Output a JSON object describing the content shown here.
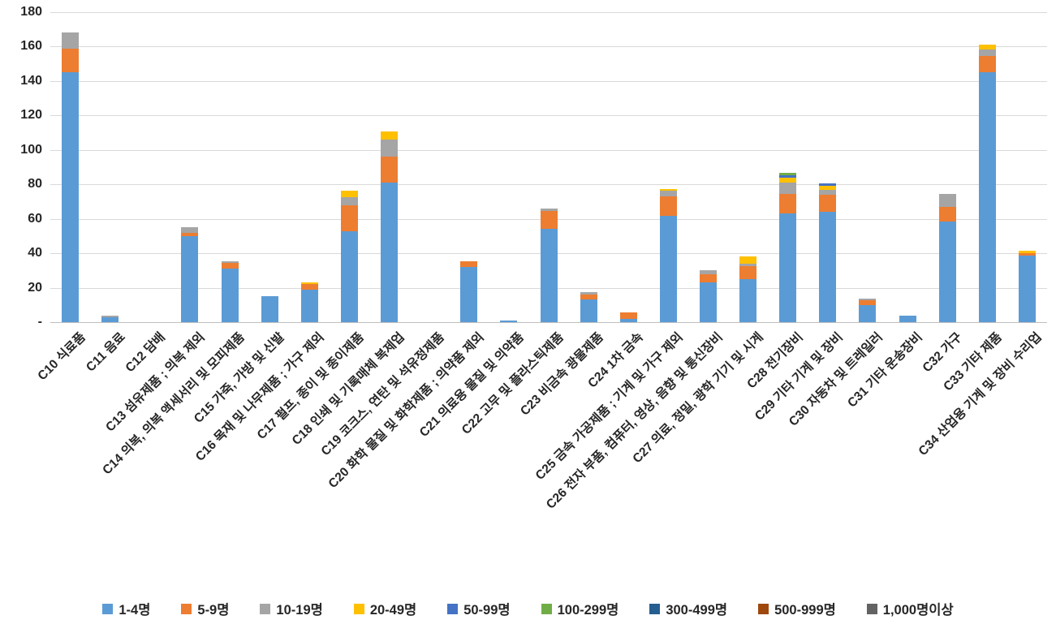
{
  "chart_data": {
    "type": "bar",
    "subtype": "stacked-vertical",
    "title": "",
    "xlabel": "",
    "ylabel": "",
    "grid": "horizontal",
    "legend_position": "bottom",
    "y_axis": {
      "min": 0,
      "max": 180,
      "step": 20,
      "tick_labels": [
        "180",
        "160",
        "140",
        "120",
        "100",
        "80",
        "60",
        "40",
        "20",
        "-"
      ]
    },
    "categories": [
      "C10 식료품",
      "C11 음료",
      "C12 담배",
      "C13 섬유제품 ; 의복 제외",
      "C14 의복, 의복 액세서리 및 모피제품",
      "C15 가죽, 가방 및 신발",
      "C16 목재 및 나무제품 ; 가구 제외",
      "C17 펄프, 종이 및 종이제품",
      "C18 인쇄 및 기록매체 복제업",
      "C19 코크스, 연탄 및 석유정제품",
      "C20 화학 물질 및 화학제품 ; 의약품 제외",
      "C21 의료용 물질 및 의약품",
      "C22 고무 및 플라스틱제품",
      "C23 비금속 광물제품",
      "C24 1차 금속",
      "C25 금속 가공제품 ; 기계 및 가구 제외",
      "C26 전자 부품, 컴퓨터, 영상, 음향 및 통신장비",
      "C27 의료, 정밀, 광학 기기 및 시계",
      "C28 전기장비",
      "C29 기타 기계 및 장비",
      "C30 자동차 및 트레일러",
      "C31 기타 운송장비",
      "C32 가구",
      "C33 기타 제품",
      "C34 산업용 기계 및 장비 수리업"
    ],
    "series": [
      {
        "name": "1-4명",
        "color": "#5B9BD5",
        "values": [
          145,
          3,
          0,
          50,
          31,
          15,
          19,
          53,
          81,
          0,
          32,
          1,
          54,
          13,
          2,
          61.5,
          23,
          25,
          63,
          64,
          10,
          4,
          58.5,
          145,
          38.5
        ]
      },
      {
        "name": "5-9명",
        "color": "#ED7D31",
        "values": [
          14,
          0,
          0,
          2,
          3.5,
          0,
          3,
          15,
          15,
          0,
          3.5,
          0,
          10.5,
          3,
          3.5,
          11.5,
          5,
          7.5,
          11.5,
          10,
          2.5,
          0,
          8.5,
          9.5,
          1.5
        ]
      },
      {
        "name": "10-19명",
        "color": "#A5A5A5",
        "values": [
          9,
          1,
          0,
          3,
          1,
          0,
          0,
          4.5,
          10,
          0,
          0,
          0,
          1.5,
          1.5,
          0,
          3.5,
          2,
          1.5,
          6.5,
          3,
          1,
          0,
          7.5,
          4,
          0
        ]
      },
      {
        "name": "20-49명",
        "color": "#FFC000",
        "values": [
          0,
          0,
          0,
          0,
          0,
          0,
          1,
          4,
          4.5,
          0,
          0,
          0,
          0,
          0,
          0,
          1,
          0,
          4,
          3,
          2,
          0,
          0,
          0,
          2.5,
          1.5
        ]
      },
      {
        "name": "50-99명",
        "color": "#4472C4",
        "values": [
          0,
          0,
          0,
          0,
          0,
          0,
          0,
          0,
          0,
          0,
          0,
          0,
          0,
          0,
          0,
          0,
          0,
          0,
          1.5,
          1.5,
          0,
          0,
          0,
          0,
          0
        ]
      },
      {
        "name": "100-299명",
        "color": "#70AD47",
        "values": [
          0,
          0,
          0,
          0,
          0,
          0,
          0,
          0,
          0,
          0,
          0,
          0,
          0,
          0,
          0,
          0,
          0,
          0,
          1,
          0,
          0,
          0,
          0,
          0,
          0
        ]
      },
      {
        "name": "300-499명",
        "color": "#255E91",
        "values": [
          0,
          0,
          0,
          0,
          0,
          0,
          0,
          0,
          0,
          0,
          0,
          0,
          0,
          0,
          0,
          0,
          0,
          0,
          0,
          0,
          0,
          0,
          0,
          0,
          0
        ]
      },
      {
        "name": "500-999명",
        "color": "#9E480E",
        "values": [
          0,
          0,
          0,
          0,
          0,
          0,
          0,
          0,
          0,
          0,
          0,
          0,
          0,
          0,
          0,
          0,
          0,
          0,
          0,
          0,
          0,
          0,
          0,
          0,
          0
        ]
      },
      {
        "name": "1,000명이상",
        "color": "#636363",
        "values": [
          0,
          0,
          0,
          0,
          0,
          0,
          0,
          0,
          0,
          0,
          0,
          0,
          0,
          0,
          0,
          0,
          0,
          0,
          0,
          0,
          0,
          0,
          0,
          0,
          0
        ]
      }
    ]
  },
  "layout_colors": {
    "gridline": "#d9d9d9",
    "axis_line": "#bfbfbf",
    "text": "#262626",
    "background": "#ffffff"
  }
}
